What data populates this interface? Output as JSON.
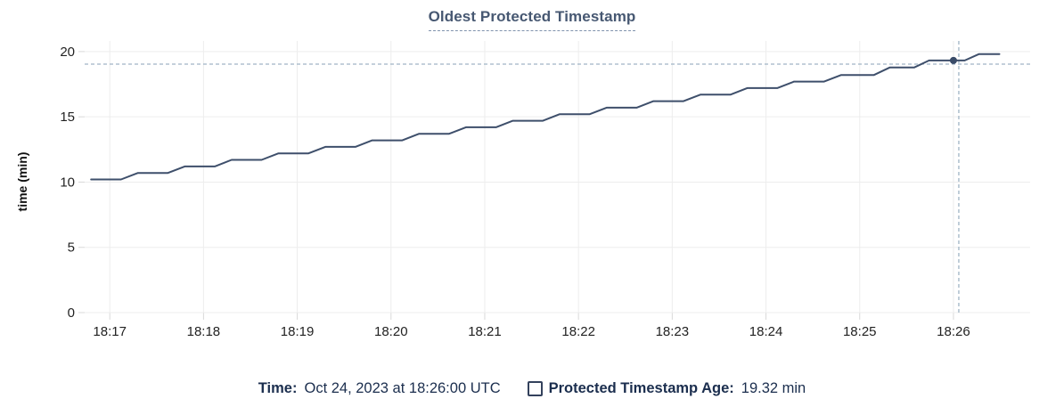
{
  "title": "Oldest Protected Timestamp",
  "legend": {
    "time_label": "Time:",
    "time_value": "Oct 24, 2023 at 18:26:00 UTC",
    "series_label": "Protected Timestamp Age:",
    "series_value": "19.32 min"
  },
  "colors": {
    "title": "#475872",
    "line": "#3e4f6b",
    "dot": "#394b68",
    "grid": "#ededed",
    "tick": "#d9d9d9",
    "axis_text": "#222222",
    "axis_title_text": "#111111",
    "crosshair": "#a0b5c5",
    "legend_text": "#1b2e4e"
  },
  "chart_data": {
    "type": "line",
    "title": "Oldest Protected Timestamp",
    "ylabel": "time (min)",
    "ylim": [
      0,
      20
    ],
    "yticks": [
      0,
      5,
      10,
      15,
      20
    ],
    "xlim": [
      16.732,
      26.818
    ],
    "xticks": [
      {
        "t": 17,
        "label": "18:17"
      },
      {
        "t": 18,
        "label": "18:18"
      },
      {
        "t": 19,
        "label": "18:19"
      },
      {
        "t": 20,
        "label": "18:20"
      },
      {
        "t": 21,
        "label": "18:21"
      },
      {
        "t": 22,
        "label": "18:22"
      },
      {
        "t": 23,
        "label": "18:23"
      },
      {
        "t": 24,
        "label": "18:24"
      },
      {
        "t": 25,
        "label": "18:25"
      },
      {
        "t": 26,
        "label": "18:26"
      }
    ],
    "grid": true,
    "legend_position": "bottom",
    "series": [
      {
        "name": "Protected Timestamp Age",
        "points": [
          [
            16.8,
            10.2
          ],
          [
            17.12,
            10.2
          ],
          [
            17.3,
            10.7
          ],
          [
            17.62,
            10.7
          ],
          [
            17.8,
            11.2
          ],
          [
            18.12,
            11.2
          ],
          [
            18.3,
            11.7
          ],
          [
            18.62,
            11.7
          ],
          [
            18.8,
            12.2
          ],
          [
            19.12,
            12.2
          ],
          [
            19.3,
            12.7
          ],
          [
            19.62,
            12.7
          ],
          [
            19.8,
            13.2
          ],
          [
            20.12,
            13.2
          ],
          [
            20.3,
            13.7
          ],
          [
            20.62,
            13.7
          ],
          [
            20.8,
            14.2
          ],
          [
            21.12,
            14.2
          ],
          [
            21.3,
            14.7
          ],
          [
            21.62,
            14.7
          ],
          [
            21.8,
            15.2
          ],
          [
            22.12,
            15.2
          ],
          [
            22.3,
            15.7
          ],
          [
            22.62,
            15.7
          ],
          [
            22.8,
            16.2
          ],
          [
            23.12,
            16.2
          ],
          [
            23.3,
            16.7
          ],
          [
            23.62,
            16.7
          ],
          [
            23.8,
            17.2
          ],
          [
            24.12,
            17.2
          ],
          [
            24.3,
            17.7
          ],
          [
            24.62,
            17.7
          ],
          [
            24.8,
            18.2
          ],
          [
            25.15,
            18.2
          ],
          [
            25.32,
            18.78
          ],
          [
            25.58,
            18.78
          ],
          [
            25.74,
            19.32
          ],
          [
            26.12,
            19.32
          ],
          [
            26.27,
            19.8
          ],
          [
            26.49,
            19.8
          ]
        ]
      }
    ],
    "hover_point": {
      "t": 26.0,
      "value": 19.32
    },
    "crosshair": {
      "t": 26.057,
      "value": 19.04
    }
  }
}
